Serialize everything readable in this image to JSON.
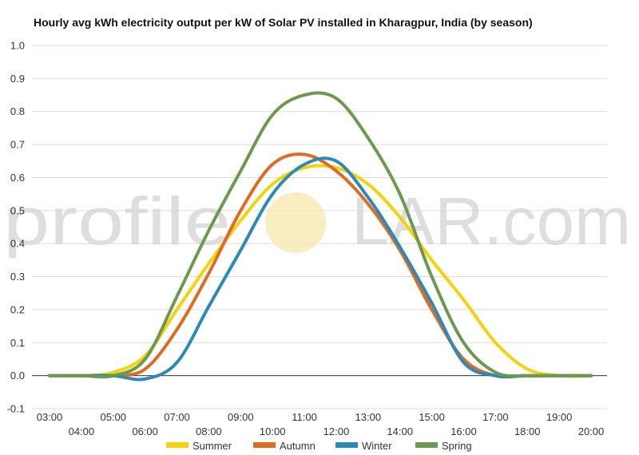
{
  "chart_data": {
    "type": "line",
    "title": "Hourly avg kWh electricity output per kW of Solar PV installed in Kharagpur, India (by season)",
    "xlabel": "",
    "ylabel": "",
    "ylim": [
      -0.1,
      1.0
    ],
    "yticks": [
      "-0.1",
      "0.0",
      "0.1",
      "0.2",
      "0.3",
      "0.4",
      "0.5",
      "0.6",
      "0.7",
      "0.8",
      "0.9",
      "1.0"
    ],
    "categories": [
      "03:00",
      "04:00",
      "05:00",
      "06:00",
      "07:00",
      "08:00",
      "09:00",
      "10:00",
      "11:00",
      "12:00",
      "13:00",
      "14:00",
      "15:00",
      "16:00",
      "17:00",
      "18:00",
      "19:00",
      "20:00"
    ],
    "grid": true,
    "legend_position": "bottom",
    "series": [
      {
        "name": "Summer",
        "color": "#f5d20a",
        "values": [
          0.0,
          0.0,
          0.01,
          0.06,
          0.2,
          0.34,
          0.47,
          0.58,
          0.63,
          0.63,
          0.58,
          0.48,
          0.35,
          0.23,
          0.1,
          0.02,
          0.0,
          0.0
        ]
      },
      {
        "name": "Autumn",
        "color": "#e06c24",
        "values": [
          0.0,
          0.0,
          0.0,
          0.02,
          0.14,
          0.31,
          0.5,
          0.64,
          0.67,
          0.62,
          0.52,
          0.38,
          0.2,
          0.05,
          0.0,
          0.0,
          0.0,
          0.0
        ]
      },
      {
        "name": "Winter",
        "color": "#2b8ab8",
        "values": [
          0.0,
          0.0,
          0.0,
          -0.01,
          0.04,
          0.21,
          0.38,
          0.55,
          0.64,
          0.65,
          0.54,
          0.39,
          0.22,
          0.04,
          0.0,
          0.0,
          0.0,
          0.0
        ]
      },
      {
        "name": "Spring",
        "color": "#6b9a4e",
        "values": [
          0.0,
          0.0,
          0.0,
          0.05,
          0.24,
          0.44,
          0.62,
          0.79,
          0.85,
          0.84,
          0.72,
          0.55,
          0.3,
          0.1,
          0.01,
          0.0,
          0.0,
          0.0
        ]
      }
    ]
  },
  "watermark": {
    "text_left": "profile",
    "text_right": "LAR.com",
    "sun_color": "#f6e6a8"
  }
}
